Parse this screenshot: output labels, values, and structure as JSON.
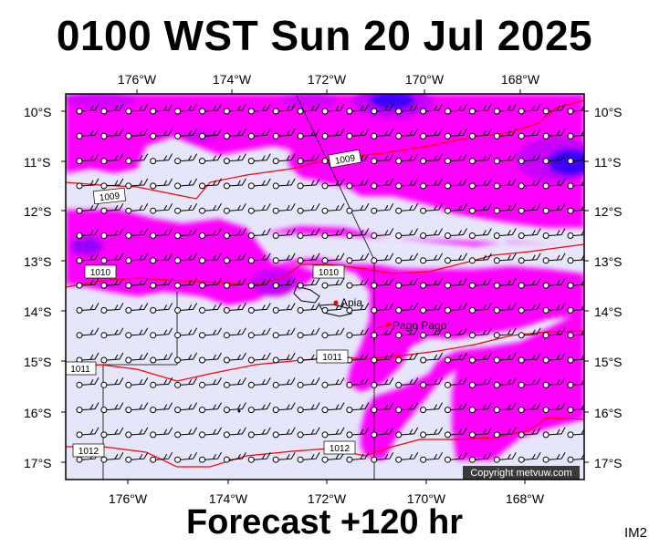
{
  "title": "0100 WST Sun 20 Jul 2025",
  "forecast_label": "Forecast +120 hr",
  "model_id": "IM2",
  "copyright": "Copyright metvuw.com",
  "colors": {
    "background_field": "#e6e6fa",
    "precip_magenta": "#ff00ff",
    "precip_violet": "#c800ff",
    "precip_purple": "#9600ff",
    "precip_blue": "#3c00ff",
    "isobar": "#ff0000",
    "copyright_box": "#3a3a3a"
  },
  "map": {
    "lon_ticks": [
      "176°W",
      "174°W",
      "172°W",
      "170°W",
      "168°W"
    ],
    "lat_ticks": [
      "10°S",
      "11°S",
      "12°S",
      "13°S",
      "14°S",
      "15°S",
      "16°S",
      "17°S"
    ],
    "isobar_labels": [
      "1009",
      "1009",
      "1010",
      "1010",
      "1011",
      "1011",
      "1012",
      "1012"
    ],
    "places": [
      "Apia",
      "Pago Pago"
    ],
    "wind_barb_icon": "wind-barb-icon"
  }
}
